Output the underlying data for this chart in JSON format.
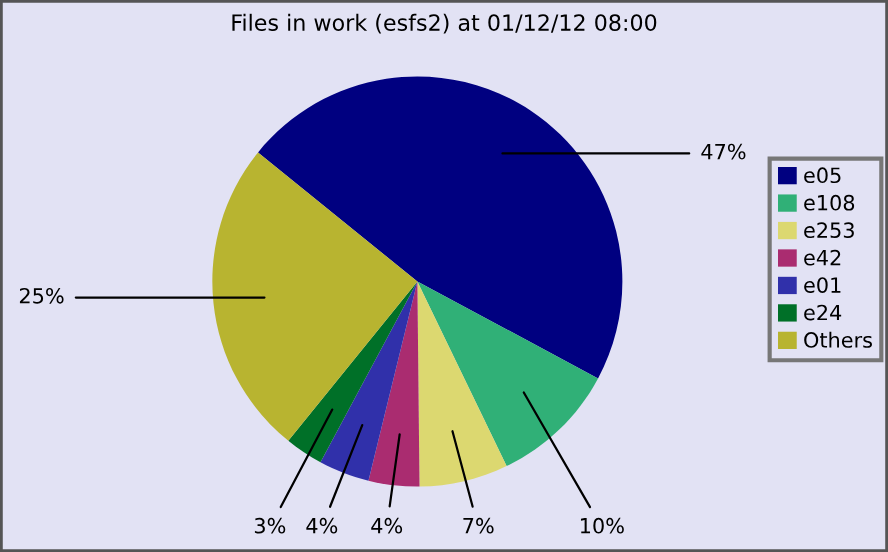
{
  "chart_data": {
    "type": "pie",
    "title": "Files in work (esfs2) at 01/12/12 08:00",
    "categories": [
      "e05",
      "e108",
      "e253",
      "e42",
      "e01",
      "e24",
      "Others"
    ],
    "values": [
      47,
      10,
      7,
      4,
      4,
      3,
      25
    ],
    "colors": [
      "#000080",
      "#30b077",
      "#dcd870",
      "#aa2c70",
      "#3030aa",
      "#007028",
      "#b8b430"
    ],
    "value_labels": [
      "47%",
      "10%",
      "7%",
      "4%",
      "4%",
      "3%",
      "25%"
    ],
    "legend": "right"
  }
}
